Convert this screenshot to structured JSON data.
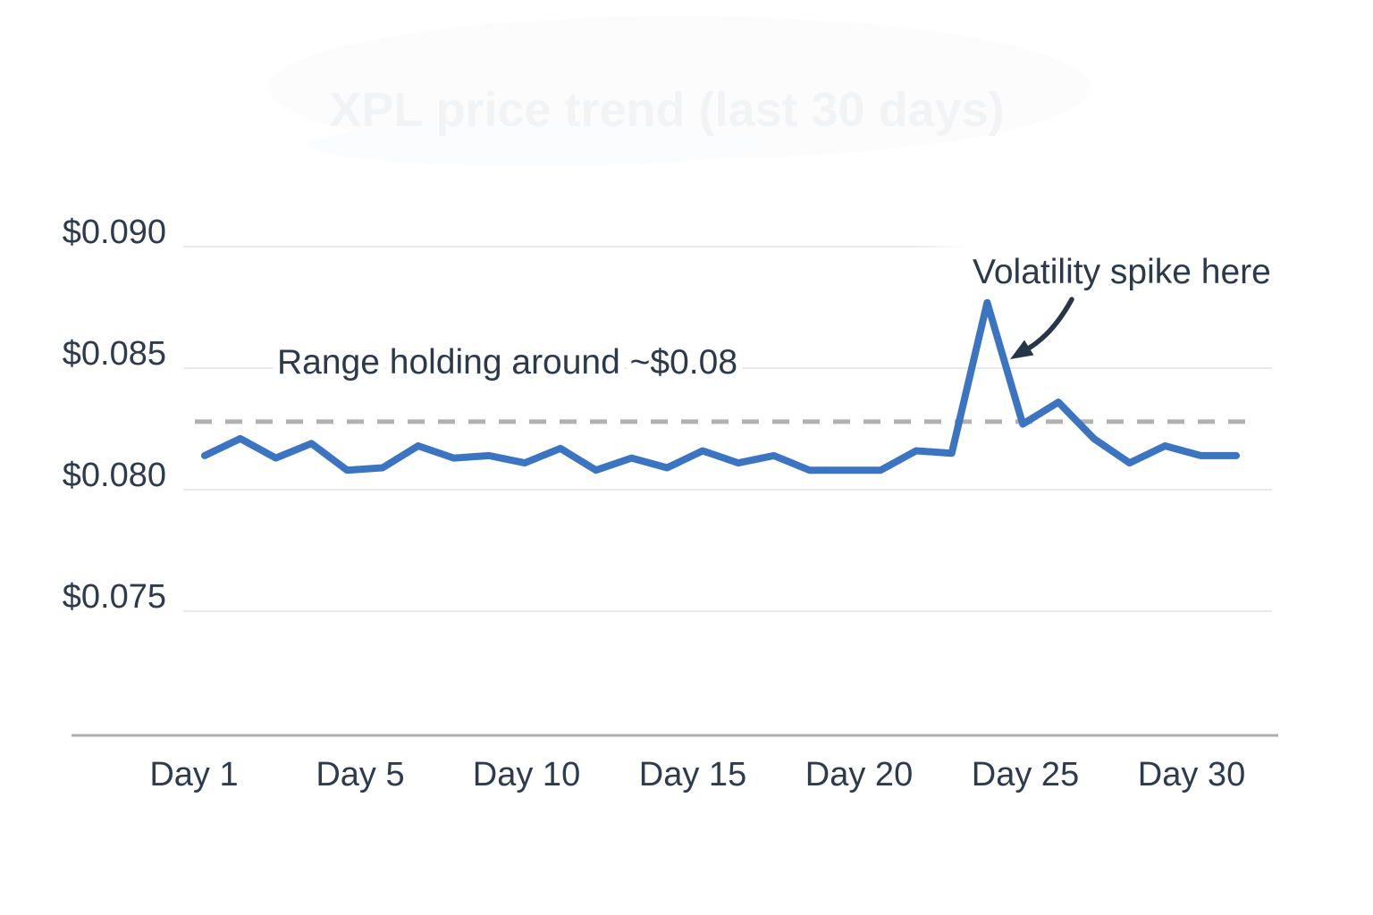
{
  "chart_data": {
    "type": "line",
    "title": "XPL price trend (last 30 days)",
    "x_axis_unit": "Day",
    "x": [
      1,
      2,
      3,
      4,
      5,
      6,
      7,
      8,
      9,
      10,
      11,
      12,
      13,
      14,
      15,
      16,
      17,
      18,
      19,
      20,
      21,
      22,
      23,
      24,
      25,
      26,
      27,
      28,
      29,
      30
    ],
    "values": [
      0.0814,
      0.0821,
      0.0813,
      0.0819,
      0.0808,
      0.0809,
      0.0818,
      0.0813,
      0.0814,
      0.0811,
      0.0817,
      0.0808,
      0.0813,
      0.0809,
      0.0816,
      0.0811,
      0.0814,
      0.0808,
      0.0808,
      0.0808,
      0.0816,
      0.0815,
      0.0877,
      0.0827,
      0.0836,
      0.0821,
      0.0811,
      0.0818,
      0.0814,
      0.0814
    ],
    "x_tick_labels": [
      "Day 1",
      "Day 5",
      "Day 10",
      "Day 15",
      "Day 20",
      "Day 25",
      "Day 30"
    ],
    "y_ticks": [
      {
        "value": 0.09,
        "label": "$0.090",
        "partial": true
      },
      {
        "value": 0.085,
        "label": "$0.085",
        "partial": false
      },
      {
        "value": 0.08,
        "label": "$0.080",
        "partial": false
      },
      {
        "value": 0.075,
        "label": "$0.075",
        "partial": false
      }
    ],
    "ylim": [
      0.0725,
      0.0925
    ],
    "reference_line": {
      "value": 0.0828,
      "style": "dashed"
    },
    "annotations": [
      {
        "text": "Range holding around ~$0.08"
      },
      {
        "text": "Volatility spike here",
        "arrow": true
      }
    ],
    "grid": "horizontal-only",
    "legend": "none",
    "spike_day": 23,
    "spike_value": 0.0877
  },
  "colors": {
    "line": "#3b74c0",
    "dashed_reference": "#b1b1b1",
    "grid": "#e9e9ec",
    "axis": "#aeaeb4",
    "text": "#2e3b4c",
    "annotation_arrow": "#263648",
    "ghost_title": "#f2f3f5"
  }
}
